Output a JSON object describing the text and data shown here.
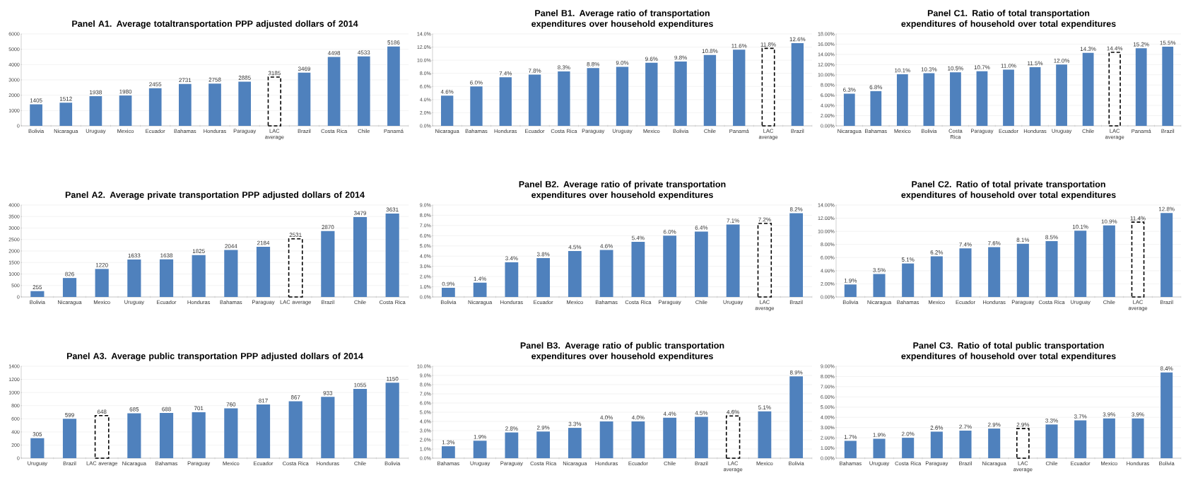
{
  "chart_data": [
    {
      "type": "bar",
      "title": "Panel A1. Average totaltransportation  PPP adjusted dollars of 2014",
      "grid": "y",
      "data_labels": true,
      "categories": [
        "Bolivia",
        "Nicaragua",
        "Uruguay",
        "Mexico",
        "Ecuador",
        "Bahamas",
        "Honduras",
        "Paraguay",
        "LAC average",
        "Brazil",
        "Costa Rica",
        "Chile",
        "Panamá"
      ],
      "series": [
        {
          "color": "#4f81bd",
          "values": [
            1405,
            1512,
            1938,
            1980,
            2455,
            2731,
            2758,
            2885,
            null,
            3469,
            4498,
            4533,
            5186
          ]
        },
        {
          "color": "#000000",
          "line_style": "dashed",
          "values": [
            null,
            null,
            null,
            null,
            null,
            null,
            null,
            null,
            3185,
            null,
            null,
            null,
            null
          ]
        }
      ],
      "ylim": [
        0,
        6000
      ],
      "yticks": [
        0,
        1000,
        2000,
        3000,
        4000,
        5000,
        6000
      ]
    },
    {
      "type": "bar",
      "title": "Panel B1. Average ratio of transportation expenditures over household expenditures",
      "grid": "y",
      "categories": [
        "Nicaragua",
        "Bahamas",
        "Honduras",
        "Ecuador",
        "Costa Rica",
        "Paraguay",
        "Uruguay",
        "Mexico",
        "Bolivia",
        "Chile",
        "Panamá",
        "LAC average",
        "Brazil"
      ],
      "series": [
        {
          "color": "#4f81bd",
          "values": [
            4.6,
            6.0,
            7.4,
            7.8,
            8.3,
            8.8,
            9.0,
            9.6,
            9.8,
            10.8,
            11.6,
            null,
            12.6
          ],
          "value_labels": [
            "4.6%",
            "6.0%",
            "7.4%",
            "7.8%",
            "8.3%",
            "8.8%",
            "9.0%",
            "9.6%",
            "9.8%",
            "10.8%",
            "11.6%",
            null,
            "12.6%"
          ]
        },
        {
          "color": "#000000",
          "line_style": "dashed",
          "values": [
            null,
            null,
            null,
            null,
            null,
            null,
            null,
            null,
            null,
            null,
            null,
            11.8,
            null
          ],
          "value_labels": [
            null,
            null,
            null,
            null,
            null,
            null,
            null,
            null,
            null,
            null,
            null,
            "11.8%",
            null
          ]
        }
      ],
      "ylim": [
        0,
        14
      ],
      "yticks": [
        {
          "value": 0,
          "label": "0.0%"
        },
        {
          "value": 2,
          "label": "2.0%"
        },
        {
          "value": 4,
          "label": "4.0%"
        },
        {
          "value": 6,
          "label": "6.0%"
        },
        {
          "value": 8,
          "label": "8.0%"
        },
        {
          "value": 10,
          "label": "10.0%"
        },
        {
          "value": 12,
          "label": "12.0%"
        },
        {
          "value": 14,
          "label": "14.0%"
        }
      ]
    },
    {
      "type": "bar",
      "title": "Panel C1. Ratio of total transportation expenditures of household over total expenditures",
      "grid": "y",
      "categories": [
        "Nicaragua",
        "Bahamas",
        "Mexico",
        "Bolivia",
        "Costa Rica",
        "Paraguay",
        "Ecuador",
        "Honduras",
        "Uruguay",
        "Chile",
        "LAC average",
        "Panamá",
        "Brazil"
      ],
      "series": [
        {
          "color": "#4f81bd",
          "values": [
            6.3,
            6.8,
            10.1,
            10.3,
            10.5,
            10.7,
            11.0,
            11.5,
            12.0,
            14.3,
            null,
            15.2,
            15.5
          ],
          "value_labels": [
            "6.3%",
            "6.8%",
            "10.1%",
            "10.3%",
            "10.5%",
            "10.7%",
            "11.0%",
            "11.5%",
            "12.0%",
            "14.3%",
            null,
            "15.2%",
            "15.5%"
          ]
        },
        {
          "color": "#000000",
          "line_style": "dashed",
          "values": [
            null,
            null,
            null,
            null,
            null,
            null,
            null,
            null,
            null,
            null,
            14.4,
            null,
            null
          ],
          "value_labels": [
            null,
            null,
            null,
            null,
            null,
            null,
            null,
            null,
            null,
            null,
            "14.4%",
            null,
            null
          ]
        }
      ],
      "ylim": [
        0,
        18
      ],
      "yticks": [
        {
          "value": 0,
          "label": "0.00%"
        },
        {
          "value": 2,
          "label": "2.00%"
        },
        {
          "value": 4,
          "label": "4.00%"
        },
        {
          "value": 6,
          "label": "6.00%"
        },
        {
          "value": 8,
          "label": "8.00%"
        },
        {
          "value": 10,
          "label": "10.00%"
        },
        {
          "value": 12,
          "label": "12.00%"
        },
        {
          "value": 14,
          "label": "14.00%"
        },
        {
          "value": 16,
          "label": "16.00%"
        },
        {
          "value": 18,
          "label": "18.00%"
        }
      ]
    },
    {
      "type": "bar",
      "title": "Panel A2. Average private transportation  PPP adjusted dollars of 2014",
      "grid": "y",
      "data_labels": true,
      "categories": [
        "Bolivia",
        "Nicaragua",
        "Mexico",
        "Uruguay",
        "Ecuador",
        "Honduras",
        "Bahamas",
        "Paraguay",
        "LAC average",
        "Brazil",
        "Chile",
        "Costa Rica"
      ],
      "series": [
        {
          "color": "#4f81bd",
          "values": [
            255,
            826,
            1220,
            1633,
            1638,
            1825,
            2044,
            2184,
            null,
            2870,
            3479,
            3631
          ]
        },
        {
          "color": "#000000",
          "line_style": "dashed",
          "values": [
            null,
            null,
            null,
            null,
            null,
            null,
            null,
            null,
            2531,
            null,
            null,
            null
          ]
        }
      ],
      "ylim": [
        0,
        4000
      ],
      "yticks": [
        0,
        500,
        1000,
        1500,
        2000,
        2500,
        3000,
        3500,
        4000
      ]
    },
    {
      "type": "bar",
      "title": "Panel B2. Average ratio of private transportation expenditures over household expenditures",
      "grid": "y",
      "categories": [
        "Bolivia",
        "Nicaragua",
        "Honduras",
        "Ecuador",
        "Mexico",
        "Bahamas",
        "Costa Rica",
        "Paraguay",
        "Chile",
        "Uruguay",
        "LAC average",
        "Brazil"
      ],
      "series": [
        {
          "color": "#4f81bd",
          "values": [
            0.9,
            1.4,
            3.4,
            3.8,
            4.5,
            4.6,
            5.4,
            6.0,
            6.4,
            7.1,
            null,
            8.2
          ],
          "value_labels": [
            "0.9%",
            "1.4%",
            "3.4%",
            "3.8%",
            "4.5%",
            "4.6%",
            "5.4%",
            "6.0%",
            "6.4%",
            "7.1%",
            null,
            "8.2%"
          ]
        },
        {
          "color": "#000000",
          "line_style": "dashed",
          "values": [
            null,
            null,
            null,
            null,
            null,
            null,
            null,
            null,
            null,
            null,
            7.2,
            null
          ],
          "value_labels": [
            null,
            null,
            null,
            null,
            null,
            null,
            null,
            null,
            null,
            null,
            "7.2%",
            null
          ]
        }
      ],
      "ylim": [
        0,
        9
      ],
      "yticks": [
        {
          "value": 0,
          "label": "0.0%"
        },
        {
          "value": 1,
          "label": "1.0%"
        },
        {
          "value": 2,
          "label": "2.0%"
        },
        {
          "value": 3,
          "label": "3.0%"
        },
        {
          "value": 4,
          "label": "4.0%"
        },
        {
          "value": 5,
          "label": "5.0%"
        },
        {
          "value": 6,
          "label": "6.0%"
        },
        {
          "value": 7,
          "label": "7.0%"
        },
        {
          "value": 8,
          "label": "8.0%"
        },
        {
          "value": 9,
          "label": "9.0%"
        }
      ]
    },
    {
      "type": "bar",
      "title": "Panel C2. Ratio of total private transportation expenditures of household over total expenditures",
      "grid": "y",
      "categories": [
        "Bolivia",
        "Nicaragua",
        "Bahamas",
        "Mexico",
        "Ecuador",
        "Honduras",
        "Paraguay",
        "Costa Rica",
        "Uruguay",
        "Chile",
        "LAC average",
        "Brazil"
      ],
      "series": [
        {
          "color": "#4f81bd",
          "values": [
            1.9,
            3.5,
            5.1,
            6.2,
            7.4,
            7.6,
            8.1,
            8.5,
            10.1,
            10.9,
            null,
            12.8
          ],
          "value_labels": [
            "1.9%",
            "3.5%",
            "5.1%",
            "6.2%",
            "7.4%",
            "7.6%",
            "8.1%",
            "8.5%",
            "10.1%",
            "10.9%",
            null,
            "12.8%"
          ]
        },
        {
          "color": "#000000",
          "line_style": "dashed",
          "values": [
            null,
            null,
            null,
            null,
            null,
            null,
            null,
            null,
            null,
            null,
            11.4,
            null
          ],
          "value_labels": [
            null,
            null,
            null,
            null,
            null,
            null,
            null,
            null,
            null,
            null,
            "11.4%",
            null
          ]
        }
      ],
      "ylim": [
        0,
        14
      ],
      "yticks": [
        {
          "value": 0,
          "label": "0.00%"
        },
        {
          "value": 2,
          "label": "2.00%"
        },
        {
          "value": 4,
          "label": "4.00%"
        },
        {
          "value": 6,
          "label": "6.00%"
        },
        {
          "value": 8,
          "label": "8.00%"
        },
        {
          "value": 10,
          "label": "10.00%"
        },
        {
          "value": 12,
          "label": "12.00%"
        },
        {
          "value": 14,
          "label": "14.00%"
        }
      ]
    },
    {
      "type": "bar",
      "title": "Panel A3. Average public transportation  PPP adjusted dollars of 2014",
      "grid": "y",
      "data_labels": true,
      "categories": [
        "Uruguay",
        "Brazil",
        "LAC average",
        "Nicaragua",
        "Bahamas",
        "Paraguay",
        "Mexico",
        "Ecuador",
        "Costa Rica",
        "Honduras",
        "Chile",
        "Bolivia"
      ],
      "series": [
        {
          "color": "#4f81bd",
          "values": [
            305,
            599,
            null,
            685,
            688,
            701,
            760,
            817,
            867,
            933,
            1055,
            1150
          ]
        },
        {
          "color": "#000000",
          "line_style": "dashed",
          "values": [
            null,
            null,
            648,
            null,
            null,
            null,
            null,
            null,
            null,
            null,
            null,
            null
          ]
        }
      ],
      "ylim": [
        0,
        1400
      ],
      "yticks": [
        0,
        200,
        400,
        600,
        800,
        1000,
        1200,
        1400
      ]
    },
    {
      "type": "bar",
      "title": "Panel B3. Average ratio of public transportation expenditures over household expenditures",
      "grid": "y",
      "categories": [
        "Bahamas",
        "Uruguay",
        "Paraguay",
        "Costa Rica",
        "Nicaragua",
        "Honduras",
        "Ecuador",
        "Chile",
        "Brazil",
        "LAC average",
        "Mexico",
        "Bolivia"
      ],
      "series": [
        {
          "color": "#4f81bd",
          "values": [
            1.3,
            1.9,
            2.8,
            2.9,
            3.3,
            4.0,
            4.0,
            4.4,
            4.5,
            null,
            5.1,
            8.9
          ],
          "value_labels": [
            "1.3%",
            "1.9%",
            "2.8%",
            "2.9%",
            "3.3%",
            "4.0%",
            "4.0%",
            "4.4%",
            "4.5%",
            null,
            "5.1%",
            "8.9%"
          ]
        },
        {
          "color": "#000000",
          "line_style": "dashed",
          "values": [
            null,
            null,
            null,
            null,
            null,
            null,
            null,
            null,
            null,
            4.6,
            null,
            null
          ],
          "value_labels": [
            null,
            null,
            null,
            null,
            null,
            null,
            null,
            null,
            null,
            "4.6%",
            null,
            null
          ]
        }
      ],
      "ylim": [
        0,
        10
      ],
      "yticks": [
        {
          "value": 0,
          "label": "0.0%"
        },
        {
          "value": 1,
          "label": "1.0%"
        },
        {
          "value": 2,
          "label": "2.0%"
        },
        {
          "value": 3,
          "label": "3.0%"
        },
        {
          "value": 4,
          "label": "4.0%"
        },
        {
          "value": 5,
          "label": "5.0%"
        },
        {
          "value": 6,
          "label": "6.0%"
        },
        {
          "value": 7,
          "label": "7.0%"
        },
        {
          "value": 8,
          "label": "8.0%"
        },
        {
          "value": 9,
          "label": "9.0%"
        },
        {
          "value": 10,
          "label": "10.0%"
        }
      ]
    },
    {
      "type": "bar",
      "title": "Panel C3. Ratio of total public transportation expenditures of household over total expenditures",
      "grid": "y",
      "categories": [
        "Bahamas",
        "Uruguay",
        "Costa Rica",
        "Paraguay",
        "Brazil",
        "Nicaragua",
        "LAC average",
        "Chile",
        "Ecuador",
        "Mexico",
        "Honduras",
        "Bolivia"
      ],
      "series": [
        {
          "color": "#4f81bd",
          "values": [
            1.7,
            1.9,
            2.0,
            2.6,
            2.7,
            2.9,
            null,
            3.3,
            3.7,
            3.9,
            3.9,
            8.4
          ],
          "value_labels": [
            "1.7%",
            "1.9%",
            "2.0%",
            "2.6%",
            "2.7%",
            "2.9%",
            null,
            "3.3%",
            "3.7%",
            "3.9%",
            "3.9%",
            "8.4%"
          ]
        },
        {
          "color": "#000000",
          "line_style": "dashed",
          "values": [
            null,
            null,
            null,
            null,
            null,
            null,
            2.9,
            null,
            null,
            null,
            null,
            null
          ],
          "value_labels": [
            null,
            null,
            null,
            null,
            null,
            null,
            "2.9%",
            null,
            null,
            null,
            null,
            null
          ]
        }
      ],
      "ylim": [
        0,
        9
      ],
      "yticks": [
        {
          "value": 0,
          "label": "0.00%"
        },
        {
          "value": 1,
          "label": "1.00%"
        },
        {
          "value": 2,
          "label": "2.00%"
        },
        {
          "value": 3,
          "label": "3.00%"
        },
        {
          "value": 4,
          "label": "4.00%"
        },
        {
          "value": 5,
          "label": "5.00%"
        },
        {
          "value": 6,
          "label": "6.00%"
        },
        {
          "value": 7,
          "label": "7.00%"
        },
        {
          "value": 8,
          "label": "8.00%"
        },
        {
          "value": 9,
          "label": "9.00%"
        }
      ]
    }
  ]
}
